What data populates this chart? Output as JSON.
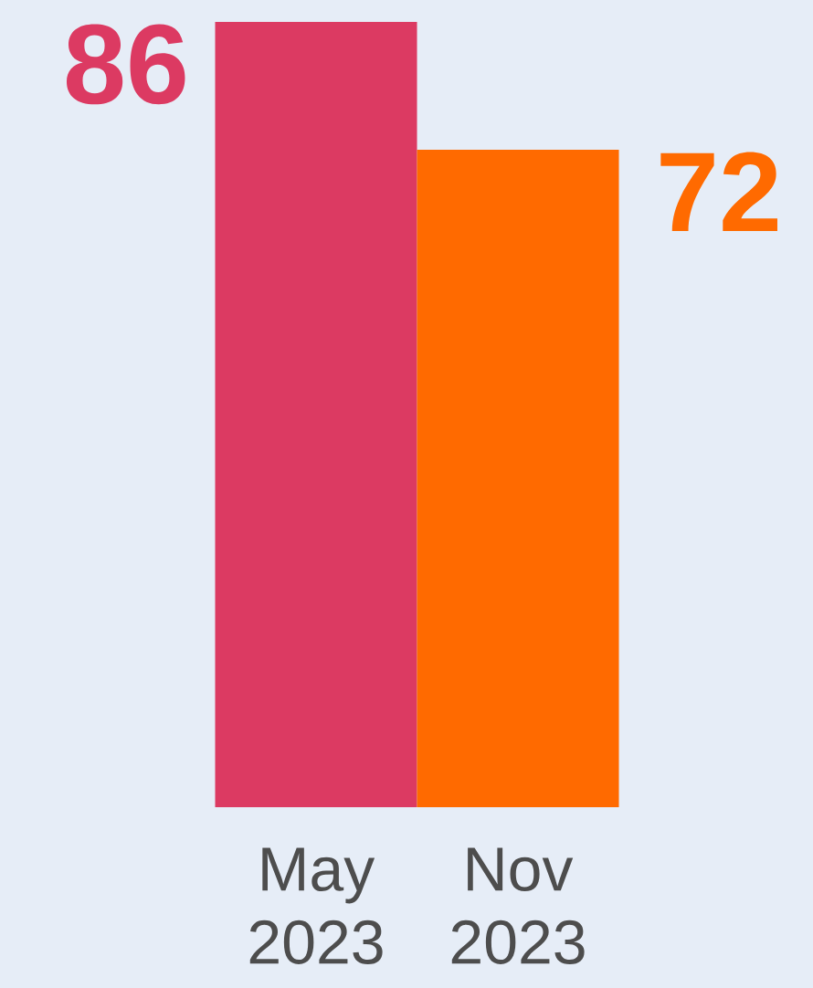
{
  "chart_data": {
    "type": "bar",
    "categories": [
      "May 2023",
      "Nov 2023"
    ],
    "values": [
      86,
      72
    ],
    "colors": [
      "#dc3a62",
      "#ff6a00"
    ],
    "ylim": [
      0,
      86
    ],
    "data_labels": true
  }
}
